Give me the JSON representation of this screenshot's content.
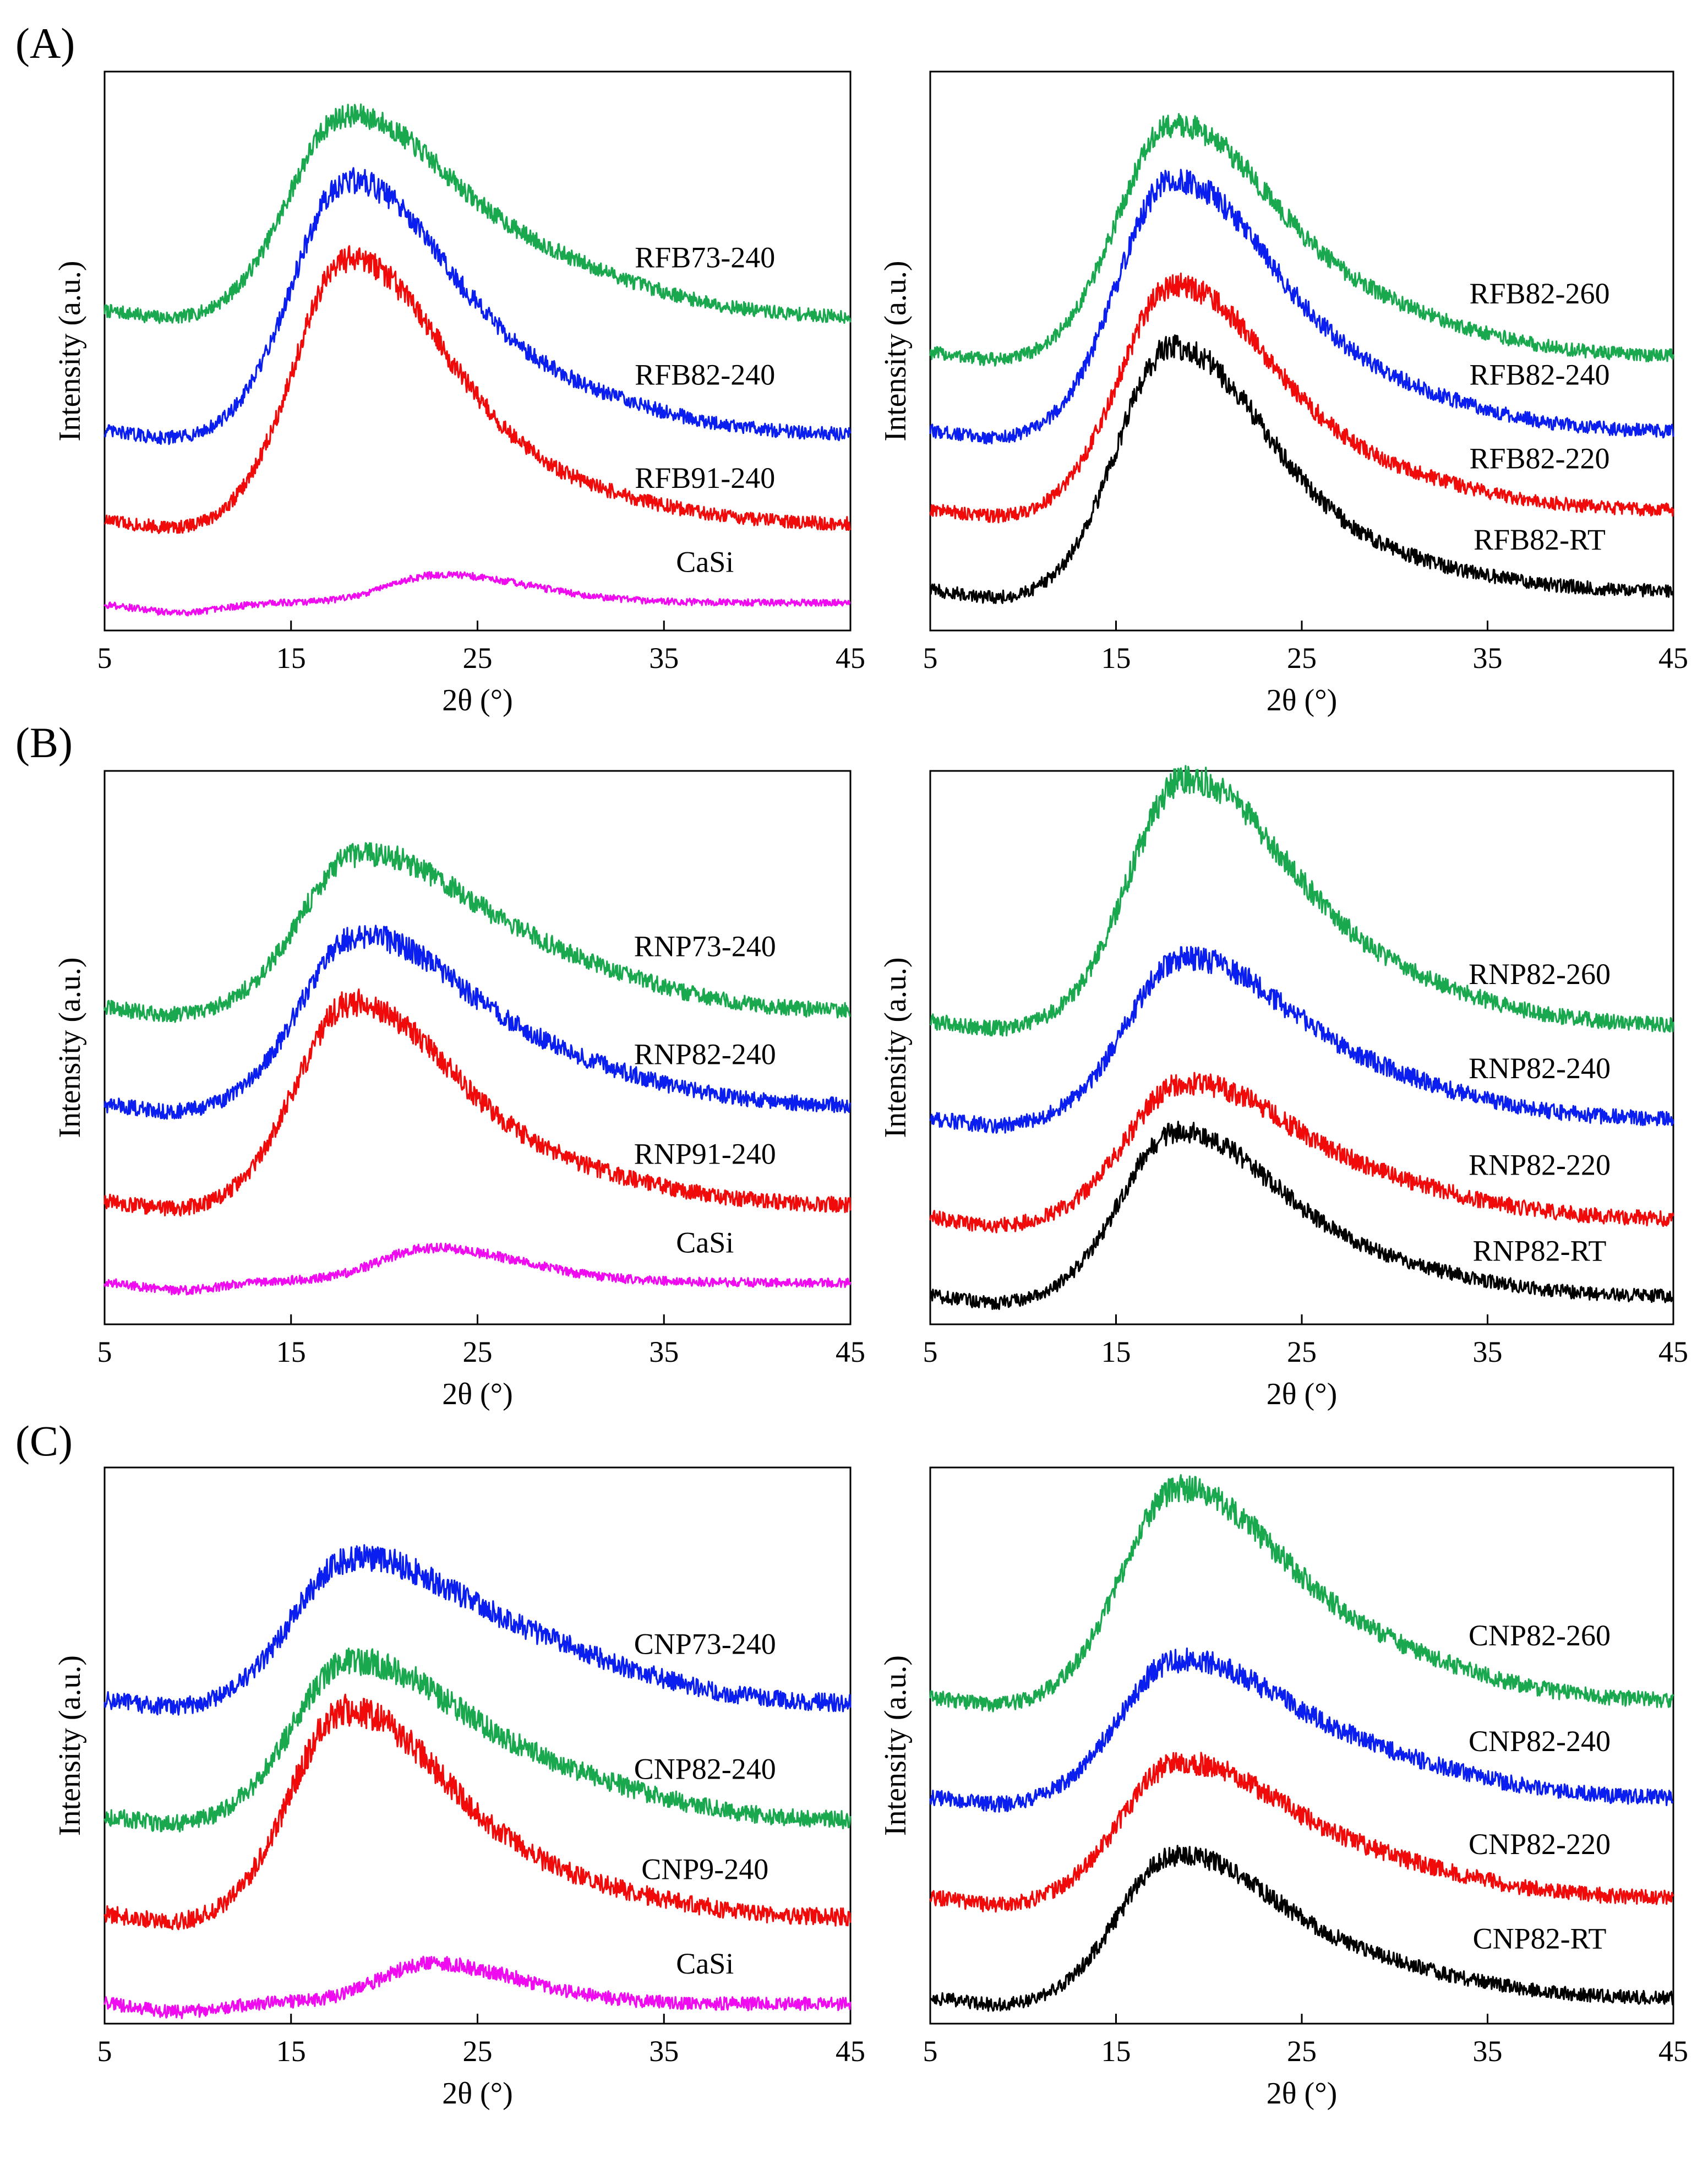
{
  "figure": {
    "rows": [
      {
        "label": "(A)"
      },
      {
        "label": "(B)"
      },
      {
        "label": "(C)"
      }
    ]
  },
  "chart_data": [
    {
      "type": "line",
      "row": 0,
      "col": 0,
      "title": "",
      "xlabel": "2θ (°)",
      "ylabel": "Intensity (a.u.)",
      "xlim": [
        5,
        45
      ],
      "xticks": [
        5,
        15,
        25,
        35,
        45
      ],
      "grid": false,
      "ylim": [
        0,
        1
      ],
      "series": [
        {
          "name": "RFB73-240",
          "color": "#1aa84f",
          "peak": 17.6,
          "height": 0.3,
          "base": 0.575,
          "base_end": 0.56,
          "bump": 0.11,
          "noise": 0.012,
          "label_x": 37.2,
          "label_y": 0.65
        },
        {
          "name": "RFB82-240",
          "color": "#0a1ef0",
          "peak": 17.8,
          "height": 0.4,
          "base": 0.36,
          "base_end": 0.35,
          "bump": 0.1,
          "noise": 0.012,
          "label_x": 37.2,
          "label_y": 0.44
        },
        {
          "name": "RFB91-240",
          "color": "#f00a0a",
          "peak": 17.9,
          "height": 0.43,
          "base": 0.2,
          "base_end": 0.19,
          "bump": 0.08,
          "noise": 0.012,
          "label_x": 37.2,
          "label_y": 0.255
        },
        {
          "name": "CaSi",
          "color": "#f00af0",
          "peak": 23,
          "height": 0.05,
          "base": 0.05,
          "base_end": 0.05,
          "bump": 0,
          "noise": 0.006,
          "label_x": 37.2,
          "label_y": 0.105
        }
      ]
    },
    {
      "type": "line",
      "row": 0,
      "col": 1,
      "title": "",
      "xlabel": "2θ (°)",
      "ylabel": "Intensity (a.u.)",
      "xlim": [
        5,
        45
      ],
      "xticks": [
        5,
        15,
        25,
        35,
        45
      ],
      "grid": false,
      "ylim": [
        0,
        1
      ],
      "series": [
        {
          "name": "RFB82-260",
          "color": "#1aa84f",
          "peak": 17.8,
          "height": 0.36,
          "base": 0.5,
          "base_end": 0.49,
          "bump": 0.1,
          "noise": 0.012,
          "label_x": 37.8,
          "label_y": 0.585
        },
        {
          "name": "RFB82-240",
          "color": "#0a1ef0",
          "peak": 17.8,
          "height": 0.4,
          "base": 0.36,
          "base_end": 0.355,
          "bump": 0.1,
          "noise": 0.012,
          "label_x": 37.8,
          "label_y": 0.44
        },
        {
          "name": "RFB82-220",
          "color": "#f00a0a",
          "peak": 17.9,
          "height": 0.36,
          "base": 0.22,
          "base_end": 0.215,
          "bump": 0.08,
          "noise": 0.012,
          "label_x": 37.8,
          "label_y": 0.29
        },
        {
          "name": "RFB82-RT",
          "color": "#000000",
          "peak": 17.8,
          "height": 0.4,
          "base": 0.075,
          "base_end": 0.07,
          "bump": 0.07,
          "noise": 0.012,
          "label_x": 37.8,
          "label_y": 0.145
        }
      ]
    },
    {
      "type": "line",
      "row": 1,
      "col": 0,
      "title": "",
      "xlabel": "2θ (°)",
      "ylabel": "Intensity (a.u.)",
      "xlim": [
        5,
        45
      ],
      "xticks": [
        5,
        15,
        25,
        35,
        45
      ],
      "grid": false,
      "ylim": [
        0,
        1
      ],
      "series": [
        {
          "name": "RNP73-240",
          "color": "#1aa84f",
          "peak": 18.2,
          "height": 0.22,
          "base": 0.575,
          "base_end": 0.565,
          "bump": 0.11,
          "noise": 0.014,
          "label_x": 37.2,
          "label_y": 0.665
        },
        {
          "name": "RNP82-240",
          "color": "#0a1ef0",
          "peak": 18.2,
          "height": 0.25,
          "base": 0.4,
          "base_end": 0.395,
          "bump": 0.1,
          "noise": 0.014,
          "label_x": 37.2,
          "label_y": 0.47
        },
        {
          "name": "RNP91-240",
          "color": "#f00a0a",
          "peak": 18,
          "height": 0.32,
          "base": 0.225,
          "base_end": 0.215,
          "bump": 0.08,
          "noise": 0.014,
          "label_x": 37.2,
          "label_y": 0.29
        },
        {
          "name": "CaSi",
          "color": "#f00af0",
          "peak": 22.5,
          "height": 0.06,
          "base": 0.08,
          "base_end": 0.075,
          "bump": 0,
          "noise": 0.008,
          "label_x": 37.2,
          "label_y": 0.13
        }
      ]
    },
    {
      "type": "line",
      "row": 1,
      "col": 1,
      "title": "",
      "xlabel": "2θ (°)",
      "ylabel": "Intensity (a.u.)",
      "xlim": [
        5,
        45
      ],
      "xticks": [
        5,
        15,
        25,
        35,
        45
      ],
      "grid": false,
      "ylim": [
        0,
        1
      ],
      "series": [
        {
          "name": "RNP82-260",
          "color": "#1aa84f",
          "peak": 18.4,
          "height": 0.38,
          "base": 0.55,
          "base_end": 0.54,
          "bump": 0.11,
          "noise": 0.014,
          "label_x": 37.8,
          "label_y": 0.615
        },
        {
          "name": "RNP82-240",
          "color": "#0a1ef0",
          "peak": 18.3,
          "height": 0.24,
          "base": 0.375,
          "base_end": 0.37,
          "bump": 0.09,
          "noise": 0.014,
          "label_x": 37.8,
          "label_y": 0.445
        },
        {
          "name": "RNP82-220",
          "color": "#f00a0a",
          "peak": 18.3,
          "height": 0.2,
          "base": 0.195,
          "base_end": 0.19,
          "bump": 0.08,
          "noise": 0.014,
          "label_x": 37.8,
          "label_y": 0.27
        },
        {
          "name": "RNP82-RT",
          "color": "#000000",
          "peak": 18,
          "height": 0.26,
          "base": 0.055,
          "base_end": 0.05,
          "bump": 0.07,
          "noise": 0.012,
          "label_x": 37.8,
          "label_y": 0.115
        }
      ]
    },
    {
      "type": "line",
      "row": 2,
      "col": 0,
      "title": "",
      "xlabel": "2θ (°)",
      "ylabel": "Intensity (a.u.)",
      "xlim": [
        5,
        45
      ],
      "xticks": [
        5,
        15,
        25,
        35,
        45
      ],
      "grid": false,
      "ylim": [
        0,
        1
      ],
      "series": [
        {
          "name": "CNP73-240",
          "color": "#0a1ef0",
          "peak": 17.8,
          "height": 0.2,
          "base": 0.585,
          "base_end": 0.575,
          "bump": 0.11,
          "noise": 0.016,
          "label_x": 37.2,
          "label_y": 0.665
        },
        {
          "name": "CNP82-240",
          "color": "#1aa84f",
          "peak": 17.8,
          "height": 0.23,
          "base": 0.375,
          "base_end": 0.365,
          "bump": 0.1,
          "noise": 0.016,
          "label_x": 37.2,
          "label_y": 0.44
        },
        {
          "name": "CNP9-240",
          "color": "#f00a0a",
          "peak": 17.7,
          "height": 0.33,
          "base": 0.2,
          "base_end": 0.19,
          "bump": 0.08,
          "noise": 0.016,
          "label_x": 37.2,
          "label_y": 0.26
        },
        {
          "name": "CaSi",
          "color": "#f00af0",
          "peak": 22.5,
          "height": 0.07,
          "base": 0.04,
          "base_end": 0.035,
          "bump": 0,
          "noise": 0.012,
          "label_x": 37.2,
          "label_y": 0.09
        }
      ]
    },
    {
      "type": "line",
      "row": 2,
      "col": 1,
      "title": "",
      "xlabel": "2θ (°)",
      "ylabel": "Intensity (a.u.)",
      "xlim": [
        5,
        45
      ],
      "xticks": [
        5,
        15,
        25,
        35,
        45
      ],
      "grid": false,
      "ylim": [
        0,
        1
      ],
      "series": [
        {
          "name": "CNP82-260",
          "color": "#1aa84f",
          "peak": 18,
          "height": 0.32,
          "base": 0.59,
          "base_end": 0.58,
          "bump": 0.11,
          "noise": 0.014,
          "label_x": 37.8,
          "label_y": 0.68
        },
        {
          "name": "CNP82-240",
          "color": "#0a1ef0",
          "peak": 17.9,
          "height": 0.2,
          "base": 0.41,
          "base_end": 0.405,
          "bump": 0.09,
          "noise": 0.014,
          "label_x": 37.8,
          "label_y": 0.49
        },
        {
          "name": "CNP82-220",
          "color": "#f00a0a",
          "peak": 18,
          "height": 0.2,
          "base": 0.23,
          "base_end": 0.225,
          "bump": 0.08,
          "noise": 0.014,
          "label_x": 37.8,
          "label_y": 0.305
        },
        {
          "name": "CNP82-RT",
          "color": "#000000",
          "peak": 17.9,
          "height": 0.22,
          "base": 0.05,
          "base_end": 0.045,
          "bump": 0.07,
          "noise": 0.012,
          "label_x": 37.8,
          "label_y": 0.135
        }
      ]
    }
  ]
}
